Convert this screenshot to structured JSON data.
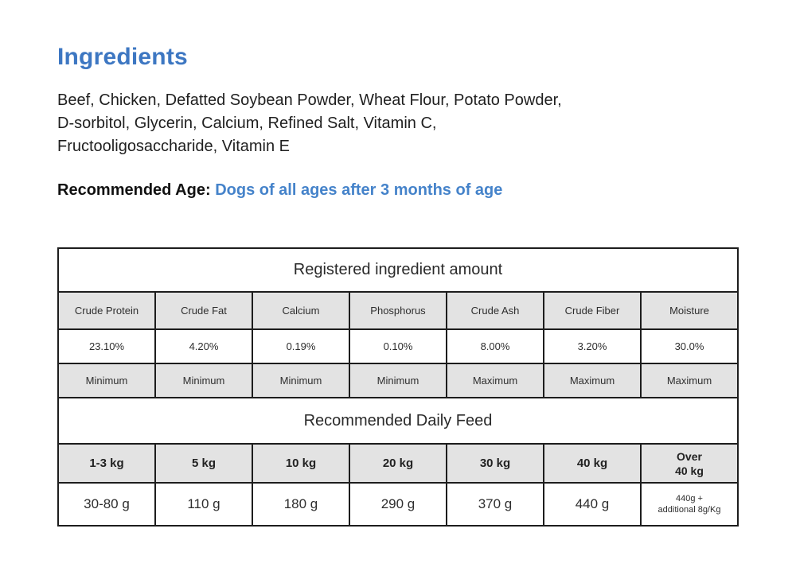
{
  "colors": {
    "accent_blue": "#3d77c2",
    "age_blue": "#4583ca",
    "cell_gray": "#e3e3e3",
    "border_dark": "#1d1d1d"
  },
  "page": {
    "title": "Ingredients",
    "ingredients_lines": [
      "Beef, Chicken, Defatted Soybean Powder, Wheat Flour, Potato Powder,",
      "D-sorbitol, Glycerin, Calcium, Refined Salt, Vitamin C,",
      "Fructooligosaccharide, Vitamin E"
    ],
    "recommended_age_label": "Recommended Age: ",
    "recommended_age_value": "Dogs of all ages after 3 months of age"
  },
  "registered_table": {
    "title": "Registered ingredient amount",
    "columns": [
      "Crude Protein",
      "Crude Fat",
      "Calcium",
      "Phosphorus",
      "Crude Ash",
      "Crude Fiber",
      "Moisture"
    ],
    "values": [
      "23.10%",
      "4.20%",
      "0.19%",
      "0.10%",
      "8.00%",
      "3.20%",
      "30.0%"
    ],
    "limits": [
      "Minimum",
      "Minimum",
      "Minimum",
      "Minimum",
      "Maximum",
      "Maximum",
      "Maximum"
    ]
  },
  "daily_feed_table": {
    "title": "Recommended Daily Feed",
    "weights": [
      "1-3 kg",
      "5 kg",
      "10 kg",
      "20 kg",
      "30 kg",
      "40 kg",
      "Over\n40 kg"
    ],
    "amounts": [
      "30-80 g",
      "110 g",
      "180 g",
      "290 g",
      "370 g",
      "440 g",
      "440g +\nadditional 8g/Kg"
    ]
  }
}
